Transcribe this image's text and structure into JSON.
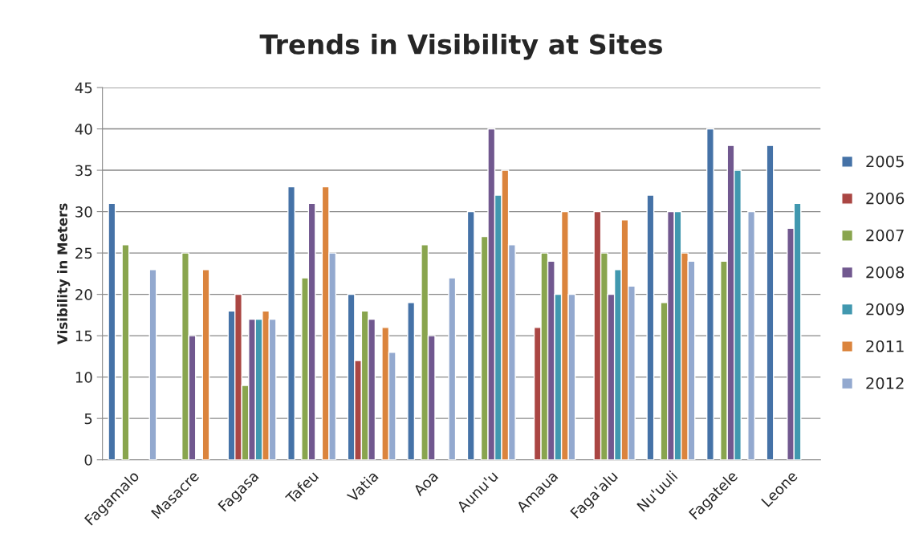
{
  "chart_data": {
    "type": "bar",
    "title": "Trends in Visibility at Sites",
    "ylabel": "Visibility in Meters",
    "categories": [
      "Fagamalo",
      "Masacre",
      "Fagasa",
      "Tafeu",
      "Vatia",
      "Aoa",
      "Aunu'u",
      "Amaua",
      "Faga'alu",
      "Nu'uuli",
      "Fagatele",
      "Leone"
    ],
    "series": [
      {
        "name": "2005",
        "color": "#4572a7",
        "values": [
          31,
          null,
          18,
          33,
          20,
          19,
          30,
          null,
          null,
          32,
          40,
          38
        ]
      },
      {
        "name": "2006",
        "color": "#aa4643",
        "values": [
          null,
          null,
          20,
          null,
          12,
          null,
          null,
          16,
          30,
          null,
          null,
          null
        ]
      },
      {
        "name": "2007",
        "color": "#89a54e",
        "values": [
          26,
          25,
          9,
          22,
          18,
          26,
          27,
          25,
          25,
          19,
          24,
          null
        ]
      },
      {
        "name": "2008",
        "color": "#71588f",
        "values": [
          null,
          15,
          17,
          31,
          17,
          15,
          40,
          24,
          20,
          30,
          38,
          28
        ]
      },
      {
        "name": "2009",
        "color": "#4198af",
        "values": [
          null,
          null,
          17,
          null,
          null,
          null,
          32,
          20,
          23,
          30,
          35,
          31
        ]
      },
      {
        "name": "2011",
        "color": "#db843d",
        "values": [
          null,
          23,
          18,
          33,
          16,
          null,
          35,
          30,
          29,
          25,
          null,
          null
        ]
      },
      {
        "name": "2012",
        "color": "#93a9cf",
        "values": [
          23,
          null,
          17,
          25,
          13,
          22,
          26,
          20,
          21,
          24,
          30,
          null
        ]
      }
    ],
    "ylim": [
      0,
      45
    ],
    "yticks": [
      0,
      5,
      10,
      15,
      20,
      25,
      30,
      35,
      40,
      45
    ],
    "grid": "y",
    "legend": "right"
  }
}
